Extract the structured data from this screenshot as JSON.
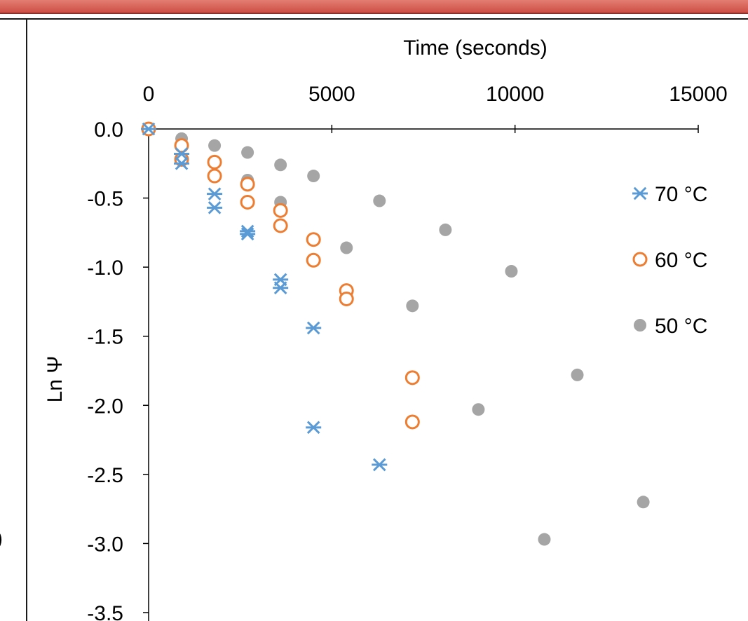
{
  "left_fragment": ")",
  "chart_data": {
    "type": "scatter",
    "x_axis_position": "top",
    "xlabel": "Time (seconds)",
    "ylabel": "Ln Ψ",
    "xlim": [
      0,
      15000
    ],
    "ylim": [
      -3.5,
      0
    ],
    "x_ticks": [
      0,
      5000,
      10000,
      15000
    ],
    "y_ticks": [
      0.0,
      -0.5,
      -1.0,
      -1.5,
      -2.0,
      -2.5,
      -3.0,
      -3.5
    ],
    "y_tick_labels": [
      "0.0",
      "-0.5",
      "-1.0",
      "-1.5",
      "-2.0",
      "-2.5",
      "-3.0",
      "-3.5"
    ],
    "grid": false,
    "legend_placement": "right",
    "series": [
      {
        "name": "70 °C",
        "marker": "asterisk",
        "color": "#5b9bd5",
        "points": [
          [
            0,
            0.0
          ],
          [
            900,
            -0.18
          ],
          [
            900,
            -0.25
          ],
          [
            1800,
            -0.47
          ],
          [
            1800,
            -0.57
          ],
          [
            2700,
            -0.74
          ],
          [
            2700,
            -0.76
          ],
          [
            3600,
            -1.09
          ],
          [
            3600,
            -1.15
          ],
          [
            4500,
            -1.44
          ],
          [
            4500,
            -2.16
          ],
          [
            6300,
            -2.43
          ]
        ]
      },
      {
        "name": "60 °C",
        "marker": "open-circle",
        "color": "#ed7d31",
        "points": [
          [
            0,
            0.0
          ],
          [
            900,
            -0.12
          ],
          [
            900,
            -0.22
          ],
          [
            1800,
            -0.24
          ],
          [
            1800,
            -0.34
          ],
          [
            2700,
            -0.4
          ],
          [
            2700,
            -0.53
          ],
          [
            3600,
            -0.59
          ],
          [
            3600,
            -0.7
          ],
          [
            4500,
            -0.8
          ],
          [
            4500,
            -0.95
          ],
          [
            5400,
            -1.17
          ],
          [
            5400,
            -1.23
          ],
          [
            7200,
            -1.8
          ],
          [
            7200,
            -2.12
          ]
        ]
      },
      {
        "name": "50 °C",
        "marker": "filled-circle",
        "color": "#a5a5a5",
        "points": [
          [
            0,
            0.0
          ],
          [
            900,
            -0.07
          ],
          [
            900,
            -0.12
          ],
          [
            1800,
            -0.12
          ],
          [
            1800,
            -0.24
          ],
          [
            2700,
            -0.17
          ],
          [
            2700,
            -0.37
          ],
          [
            3600,
            -0.26
          ],
          [
            3600,
            -0.53
          ],
          [
            4500,
            -0.34
          ],
          [
            5400,
            -0.86
          ],
          [
            6300,
            -0.52
          ],
          [
            7200,
            -1.28
          ],
          [
            8100,
            -0.73
          ],
          [
            9000,
            -2.03
          ],
          [
            9900,
            -1.03
          ],
          [
            10800,
            -2.97
          ],
          [
            11700,
            -1.78
          ],
          [
            13500,
            -2.7
          ]
        ]
      }
    ]
  }
}
